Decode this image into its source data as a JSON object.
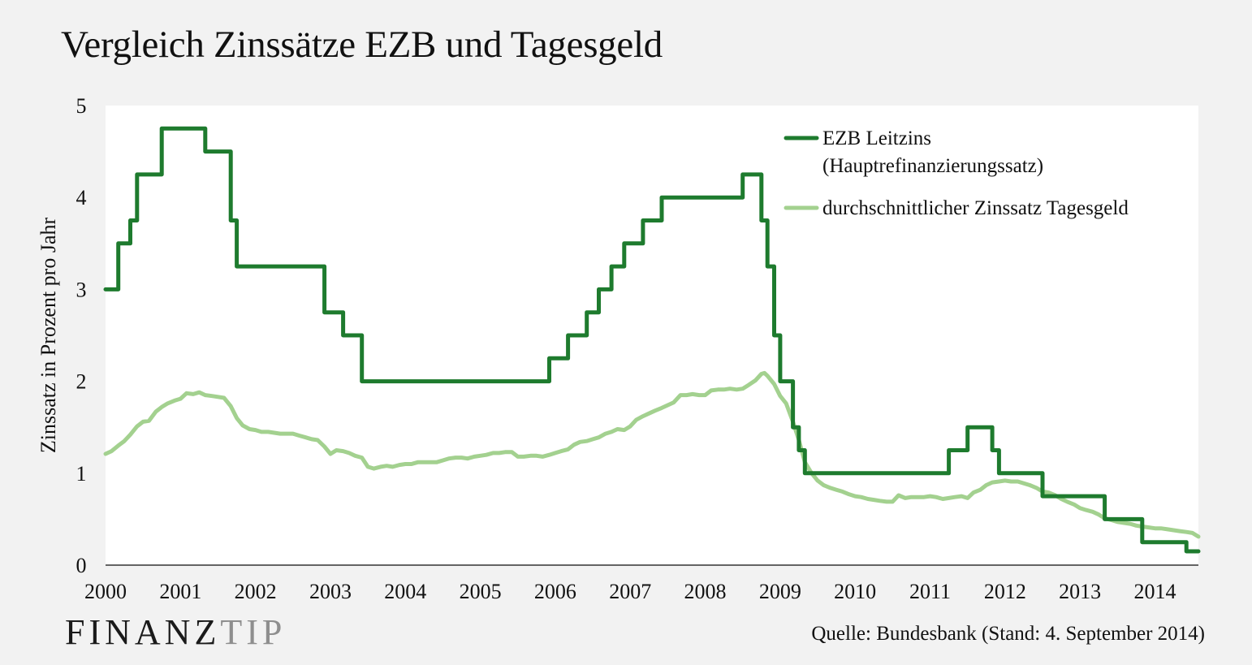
{
  "title": "Vergleich Zinssätze EZB und Tagesgeld",
  "source": "Quelle: Bundesbank (Stand: 4. September 2014)",
  "logo": {
    "word1": "FINANZ",
    "word2": "TIP"
  },
  "chart_data": {
    "type": "line",
    "title": "Vergleich Zinssätze EZB und Tagesgeld",
    "ylabel": "Zinssatz in Prozent pro Jahr",
    "xlabel": "",
    "xlim": [
      2000.0,
      2014.58
    ],
    "ylim": [
      0,
      5
    ],
    "xticks": [
      "2000",
      "2001",
      "2002",
      "2003",
      "2004",
      "2005",
      "2006",
      "2007",
      "2008",
      "2009",
      "2010",
      "2011",
      "2012",
      "2013",
      "2014"
    ],
    "yticks": [
      "0",
      "1",
      "2",
      "3",
      "4",
      "5"
    ],
    "grid": false,
    "legend": "top-right",
    "series": [
      {
        "name": "EZB Leitzins (Hauptrefinanzierungssatz)",
        "legend_lines": [
          "EZB Leitzins",
          "(Hauptrefinanzierungssatz)"
        ],
        "color": "#1e7b2e",
        "step": true,
        "points": [
          [
            2000.0,
            3.0
          ],
          [
            2000.17,
            3.5
          ],
          [
            2000.33,
            3.75
          ],
          [
            2000.42,
            4.25
          ],
          [
            2000.75,
            4.75
          ],
          [
            2001.33,
            4.5
          ],
          [
            2001.67,
            3.75
          ],
          [
            2001.75,
            3.25
          ],
          [
            2002.92,
            2.75
          ],
          [
            2003.17,
            2.5
          ],
          [
            2003.42,
            2.0
          ],
          [
            2005.92,
            2.25
          ],
          [
            2006.17,
            2.5
          ],
          [
            2006.42,
            2.75
          ],
          [
            2006.58,
            3.0
          ],
          [
            2006.75,
            3.25
          ],
          [
            2006.92,
            3.5
          ],
          [
            2007.17,
            3.75
          ],
          [
            2007.42,
            4.0
          ],
          [
            2008.5,
            4.25
          ],
          [
            2008.75,
            3.75
          ],
          [
            2008.83,
            3.25
          ],
          [
            2008.92,
            2.5
          ],
          [
            2009.0,
            2.0
          ],
          [
            2009.17,
            1.5
          ],
          [
            2009.25,
            1.25
          ],
          [
            2009.33,
            1.0
          ],
          [
            2011.25,
            1.25
          ],
          [
            2011.5,
            1.5
          ],
          [
            2011.83,
            1.25
          ],
          [
            2011.92,
            1.0
          ],
          [
            2012.5,
            0.75
          ],
          [
            2013.33,
            0.5
          ],
          [
            2013.83,
            0.25
          ],
          [
            2014.42,
            0.15
          ],
          [
            2014.58,
            0.15
          ]
        ]
      },
      {
        "name": "durchschnittlicher Zinssatz Tagesgeld",
        "legend_lines": [
          "durchschnittlicher Zinssatz Tagesgeld"
        ],
        "color": "#a3d18f",
        "step": false,
        "points": [
          [
            2000.0,
            1.21
          ],
          [
            2000.08,
            1.24
          ],
          [
            2000.17,
            1.3
          ],
          [
            2000.25,
            1.35
          ],
          [
            2000.33,
            1.42
          ],
          [
            2000.42,
            1.51
          ],
          [
            2000.5,
            1.56
          ],
          [
            2000.58,
            1.57
          ],
          [
            2000.67,
            1.67
          ],
          [
            2000.75,
            1.72
          ],
          [
            2000.83,
            1.76
          ],
          [
            2000.92,
            1.79
          ],
          [
            2001.0,
            1.81
          ],
          [
            2001.08,
            1.87
          ],
          [
            2001.17,
            1.86
          ],
          [
            2001.25,
            1.88
          ],
          [
            2001.33,
            1.85
          ],
          [
            2001.42,
            1.84
          ],
          [
            2001.5,
            1.83
          ],
          [
            2001.58,
            1.82
          ],
          [
            2001.67,
            1.73
          ],
          [
            2001.75,
            1.6
          ],
          [
            2001.83,
            1.52
          ],
          [
            2001.92,
            1.48
          ],
          [
            2002.0,
            1.47
          ],
          [
            2002.08,
            1.45
          ],
          [
            2002.17,
            1.45
          ],
          [
            2002.25,
            1.44
          ],
          [
            2002.33,
            1.43
          ],
          [
            2002.42,
            1.43
          ],
          [
            2002.5,
            1.43
          ],
          [
            2002.58,
            1.41
          ],
          [
            2002.67,
            1.39
          ],
          [
            2002.75,
            1.37
          ],
          [
            2002.83,
            1.36
          ],
          [
            2002.92,
            1.29
          ],
          [
            2003.0,
            1.21
          ],
          [
            2003.08,
            1.25
          ],
          [
            2003.17,
            1.24
          ],
          [
            2003.25,
            1.22
          ],
          [
            2003.33,
            1.19
          ],
          [
            2003.42,
            1.17
          ],
          [
            2003.5,
            1.07
          ],
          [
            2003.58,
            1.05
          ],
          [
            2003.67,
            1.07
          ],
          [
            2003.75,
            1.08
          ],
          [
            2003.83,
            1.07
          ],
          [
            2003.92,
            1.09
          ],
          [
            2004.0,
            1.1
          ],
          [
            2004.08,
            1.1
          ],
          [
            2004.17,
            1.12
          ],
          [
            2004.25,
            1.12
          ],
          [
            2004.33,
            1.12
          ],
          [
            2004.42,
            1.12
          ],
          [
            2004.5,
            1.14
          ],
          [
            2004.58,
            1.16
          ],
          [
            2004.67,
            1.17
          ],
          [
            2004.75,
            1.17
          ],
          [
            2004.83,
            1.16
          ],
          [
            2004.92,
            1.18
          ],
          [
            2005.0,
            1.19
          ],
          [
            2005.08,
            1.2
          ],
          [
            2005.17,
            1.22
          ],
          [
            2005.25,
            1.22
          ],
          [
            2005.33,
            1.23
          ],
          [
            2005.42,
            1.23
          ],
          [
            2005.5,
            1.18
          ],
          [
            2005.58,
            1.18
          ],
          [
            2005.67,
            1.19
          ],
          [
            2005.75,
            1.19
          ],
          [
            2005.83,
            1.18
          ],
          [
            2005.92,
            1.2
          ],
          [
            2006.0,
            1.22
          ],
          [
            2006.08,
            1.24
          ],
          [
            2006.17,
            1.26
          ],
          [
            2006.25,
            1.31
          ],
          [
            2006.33,
            1.34
          ],
          [
            2006.42,
            1.35
          ],
          [
            2006.5,
            1.37
          ],
          [
            2006.58,
            1.39
          ],
          [
            2006.67,
            1.43
          ],
          [
            2006.75,
            1.45
          ],
          [
            2006.83,
            1.48
          ],
          [
            2006.92,
            1.47
          ],
          [
            2007.0,
            1.51
          ],
          [
            2007.08,
            1.58
          ],
          [
            2007.17,
            1.62
          ],
          [
            2007.25,
            1.65
          ],
          [
            2007.33,
            1.68
          ],
          [
            2007.42,
            1.71
          ],
          [
            2007.5,
            1.74
          ],
          [
            2007.58,
            1.77
          ],
          [
            2007.67,
            1.85
          ],
          [
            2007.75,
            1.85
          ],
          [
            2007.83,
            1.86
          ],
          [
            2007.92,
            1.85
          ],
          [
            2008.0,
            1.85
          ],
          [
            2008.08,
            1.9
          ],
          [
            2008.17,
            1.91
          ],
          [
            2008.25,
            1.91
          ],
          [
            2008.33,
            1.92
          ],
          [
            2008.42,
            1.91
          ],
          [
            2008.5,
            1.92
          ],
          [
            2008.58,
            1.96
          ],
          [
            2008.67,
            2.01
          ],
          [
            2008.75,
            2.08
          ],
          [
            2008.79,
            2.09
          ],
          [
            2008.83,
            2.06
          ],
          [
            2008.92,
            1.97
          ],
          [
            2009.0,
            1.84
          ],
          [
            2009.08,
            1.76
          ],
          [
            2009.17,
            1.56
          ],
          [
            2009.25,
            1.36
          ],
          [
            2009.33,
            1.12
          ],
          [
            2009.42,
            1.0
          ],
          [
            2009.5,
            0.92
          ],
          [
            2009.58,
            0.87
          ],
          [
            2009.67,
            0.84
          ],
          [
            2009.75,
            0.82
          ],
          [
            2009.83,
            0.8
          ],
          [
            2009.92,
            0.77
          ],
          [
            2010.0,
            0.75
          ],
          [
            2010.08,
            0.74
          ],
          [
            2010.17,
            0.72
          ],
          [
            2010.25,
            0.71
          ],
          [
            2010.33,
            0.7
          ],
          [
            2010.42,
            0.69
          ],
          [
            2010.5,
            0.69
          ],
          [
            2010.58,
            0.76
          ],
          [
            2010.67,
            0.73
          ],
          [
            2010.75,
            0.74
          ],
          [
            2010.83,
            0.74
          ],
          [
            2010.92,
            0.74
          ],
          [
            2011.0,
            0.75
          ],
          [
            2011.08,
            0.74
          ],
          [
            2011.17,
            0.72
          ],
          [
            2011.25,
            0.73
          ],
          [
            2011.33,
            0.74
          ],
          [
            2011.42,
            0.75
          ],
          [
            2011.5,
            0.73
          ],
          [
            2011.58,
            0.79
          ],
          [
            2011.67,
            0.82
          ],
          [
            2011.75,
            0.87
          ],
          [
            2011.83,
            0.9
          ],
          [
            2011.92,
            0.91
          ],
          [
            2012.0,
            0.92
          ],
          [
            2012.08,
            0.91
          ],
          [
            2012.17,
            0.91
          ],
          [
            2012.25,
            0.89
          ],
          [
            2012.33,
            0.87
          ],
          [
            2012.42,
            0.84
          ],
          [
            2012.5,
            0.8
          ],
          [
            2012.58,
            0.79
          ],
          [
            2012.67,
            0.76
          ],
          [
            2012.75,
            0.72
          ],
          [
            2012.83,
            0.69
          ],
          [
            2012.92,
            0.66
          ],
          [
            2013.0,
            0.62
          ],
          [
            2013.08,
            0.6
          ],
          [
            2013.17,
            0.58
          ],
          [
            2013.25,
            0.55
          ],
          [
            2013.33,
            0.51
          ],
          [
            2013.42,
            0.49
          ],
          [
            2013.5,
            0.47
          ],
          [
            2013.58,
            0.46
          ],
          [
            2013.67,
            0.45
          ],
          [
            2013.75,
            0.43
          ],
          [
            2013.83,
            0.42
          ],
          [
            2013.92,
            0.41
          ],
          [
            2014.0,
            0.4
          ],
          [
            2014.08,
            0.4
          ],
          [
            2014.17,
            0.39
          ],
          [
            2014.25,
            0.38
          ],
          [
            2014.33,
            0.37
          ],
          [
            2014.42,
            0.36
          ],
          [
            2014.5,
            0.35
          ],
          [
            2014.58,
            0.31
          ]
        ]
      }
    ]
  }
}
